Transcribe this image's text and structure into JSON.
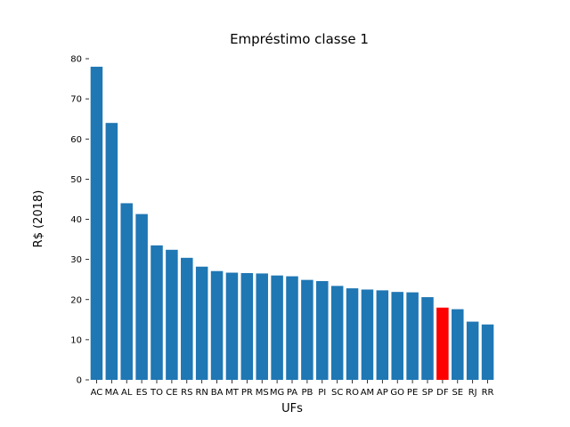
{
  "chart_data": {
    "type": "bar",
    "title": "Empréstimo classe 1",
    "xlabel": "UFs",
    "ylabel": "R$ (2018)",
    "ylim": [
      0,
      80
    ],
    "yticks": [
      0,
      10,
      20,
      30,
      40,
      50,
      60,
      70,
      80
    ],
    "categories": [
      "AC",
      "MA",
      "AL",
      "ES",
      "TO",
      "CE",
      "RS",
      "RN",
      "BA",
      "MT",
      "PR",
      "MS",
      "MG",
      "PA",
      "PB",
      "PI",
      "SC",
      "RO",
      "AM",
      "AP",
      "GO",
      "PE",
      "SP",
      "DF",
      "SE",
      "RJ",
      "RR"
    ],
    "values": [
      78.0,
      64.0,
      44.0,
      41.3,
      33.5,
      32.4,
      30.4,
      28.2,
      27.1,
      26.7,
      26.6,
      26.5,
      26.0,
      25.8,
      24.9,
      24.6,
      23.4,
      22.8,
      22.5,
      22.3,
      21.9,
      21.8,
      20.6,
      18.0,
      17.6,
      14.5,
      13.8
    ],
    "highlight": "DF",
    "colors": {
      "default": "#1f77b4",
      "highlight": "#ff0000"
    },
    "grid": false,
    "legend": "none"
  }
}
